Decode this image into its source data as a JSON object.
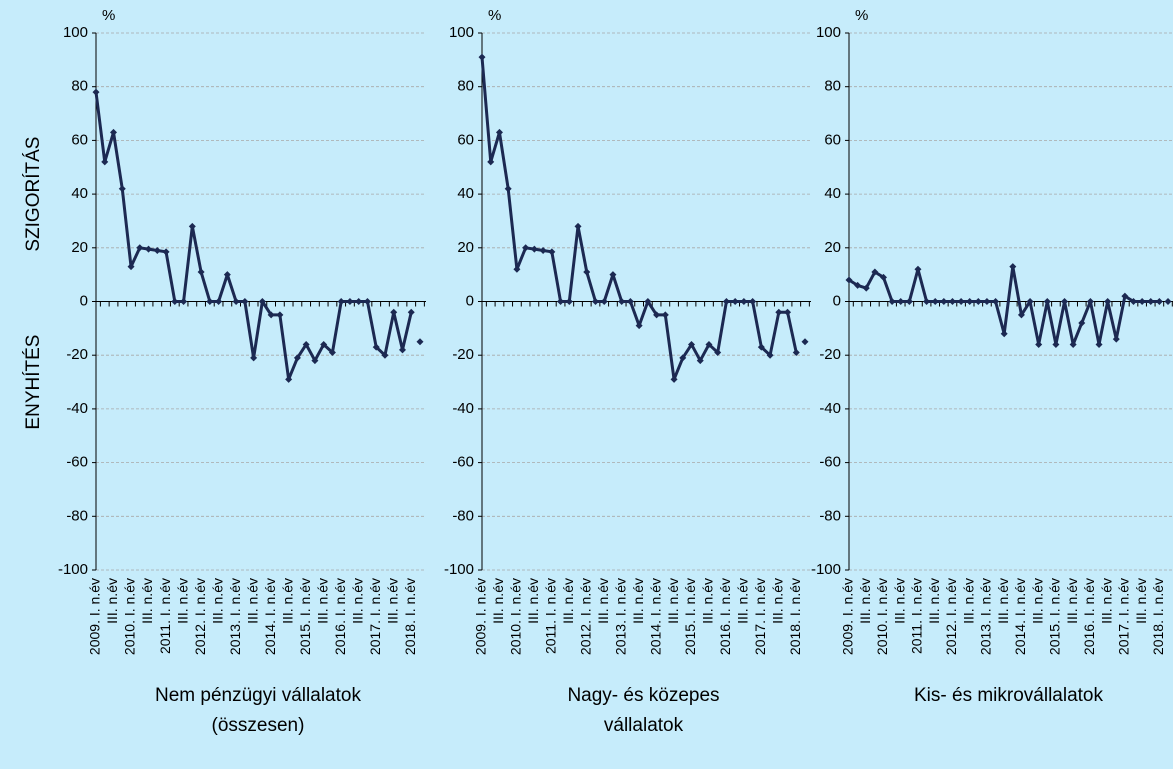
{
  "chart_data": [
    {
      "type": "line",
      "title": [
        "Nem pénzügyi vállalatok",
        "(összesen)"
      ],
      "y_unit": "%",
      "ylabel_top": "SZIGORÍTÁS",
      "ylabel_bottom": "ENYHÍTÉS",
      "categories": [
        "2009. I. n.év",
        null,
        "III. n.év",
        null,
        "2010. I. n.év",
        null,
        "III. n.év",
        null,
        "2011. I. n.év",
        null,
        "III. n.év",
        null,
        "2012. I. n.év",
        null,
        "III. n.év",
        null,
        "2013. I. n.év",
        null,
        "III. n.év",
        null,
        "2014. I. n.év",
        null,
        "III. n.év",
        null,
        "2015. I. n.év",
        null,
        "III. n.év",
        null,
        "2016. I. n.év",
        null,
        "III. n.év",
        null,
        "2017. I. n.év",
        null,
        "III. n.év",
        null,
        "2018. I. n.év",
        null
      ],
      "series": [
        {
          "color": "#1c2952",
          "values": [
            78,
            52,
            63,
            42,
            13,
            20,
            19.5,
            19,
            18.5,
            0,
            0,
            28,
            11,
            0,
            0,
            10,
            0,
            0,
            -21,
            0,
            -5,
            -5,
            -29,
            -21,
            -16,
            -22,
            -16,
            -19,
            0,
            0,
            0,
            0,
            -17,
            -20,
            -4,
            -18,
            -4,
            null
          ]
        },
        {
          "color": "#1c2952",
          "values": [
            null,
            null,
            null,
            null,
            null,
            null,
            null,
            null,
            null,
            null,
            null,
            null,
            null,
            null,
            null,
            null,
            null,
            null,
            null,
            null,
            null,
            null,
            null,
            null,
            null,
            null,
            null,
            null,
            null,
            null,
            null,
            null,
            null,
            null,
            null,
            null,
            null,
            -15
          ]
        }
      ],
      "ylim": [
        -100,
        100
      ],
      "yticks": [
        -100,
        -80,
        -60,
        -40,
        -20,
        0,
        20,
        40,
        60,
        80,
        100
      ],
      "grid": true
    },
    {
      "type": "line",
      "title": [
        "Nagy- és közepes",
        "vállalatok"
      ],
      "y_unit": "%",
      "categories": [
        "2009. I. n.év",
        null,
        "III. n.év",
        null,
        "2010. I. n.év",
        null,
        "III. n.év",
        null,
        "2011. I. n.év",
        null,
        "III. n.év",
        null,
        "2012. I. n.év",
        null,
        "III. n.év",
        null,
        "2013. I. n.év",
        null,
        "III. n.év",
        null,
        "2014. I. n.év",
        null,
        "III. n.év",
        null,
        "2015. I. n.év",
        null,
        "III. n.év",
        null,
        "2016. I. n.év",
        null,
        "III. n.év",
        null,
        "2017. I. n.év",
        null,
        "III. n.év",
        null,
        "2018. I. n.év",
        null
      ],
      "series": [
        {
          "color": "#1c2952",
          "values": [
            91,
            52,
            63,
            42,
            12,
            20,
            19.5,
            19,
            18.5,
            0,
            0,
            28,
            11,
            0,
            0,
            10,
            0,
            0,
            -9,
            0,
            -5,
            -5,
            -29,
            -21,
            -16,
            -22,
            -16,
            -19,
            0,
            0,
            0,
            0,
            -17,
            -20,
            -4,
            -4,
            -19,
            null
          ]
        },
        {
          "color": "#1c2952",
          "values": [
            null,
            null,
            null,
            null,
            null,
            null,
            null,
            null,
            null,
            null,
            null,
            null,
            null,
            null,
            null,
            null,
            null,
            null,
            null,
            null,
            null,
            null,
            null,
            null,
            null,
            null,
            null,
            null,
            null,
            null,
            null,
            null,
            null,
            null,
            null,
            null,
            null,
            -15
          ]
        }
      ],
      "ylim": [
        -100,
        100
      ],
      "yticks": [
        -100,
        -80,
        -60,
        -40,
        -20,
        0,
        20,
        40,
        60,
        80,
        100
      ],
      "grid": true
    },
    {
      "type": "line",
      "title": [
        "Kis- és mikrovállalatok"
      ],
      "y_unit": "%",
      "categories": [
        "2009. I. n.év",
        null,
        "III. n.év",
        null,
        "2010. I. n.év",
        null,
        "III. n.év",
        null,
        "2011. I. n.év",
        null,
        "III. n.év",
        null,
        "2012. I. n.év",
        null,
        "III. n.év",
        null,
        "2013. I. n.év",
        null,
        "III. n.év",
        null,
        "2014. I. n.év",
        null,
        "III. n.év",
        null,
        "2015. I. n.év",
        null,
        "III. n.év",
        null,
        "2016. I. n.év",
        null,
        "III. n.év",
        null,
        "2017. I. n.év",
        null,
        "III. n.év",
        null,
        "2018. I. n.év",
        null
      ],
      "series": [
        {
          "color": "#1c2952",
          "values": [
            8,
            6,
            5,
            11,
            9,
            0,
            0,
            0,
            12,
            0,
            0,
            0,
            0,
            0,
            0,
            0,
            0,
            0,
            -12,
            13,
            -5,
            0,
            -16,
            0,
            -16,
            0,
            -16,
            -8,
            0,
            -16,
            0,
            -14,
            2,
            0,
            0,
            0,
            0,
            null
          ]
        },
        {
          "color": "#1c2952",
          "values": [
            null,
            null,
            null,
            null,
            null,
            null,
            null,
            null,
            null,
            null,
            null,
            null,
            null,
            null,
            null,
            null,
            null,
            null,
            null,
            null,
            null,
            null,
            null,
            null,
            null,
            null,
            null,
            null,
            null,
            null,
            null,
            null,
            null,
            null,
            null,
            null,
            null,
            0
          ]
        }
      ],
      "ylim": [
        -100,
        100
      ],
      "yticks": [
        -100,
        -80,
        -60,
        -40,
        -20,
        0,
        20,
        40,
        60,
        80,
        100
      ],
      "grid": true
    }
  ]
}
